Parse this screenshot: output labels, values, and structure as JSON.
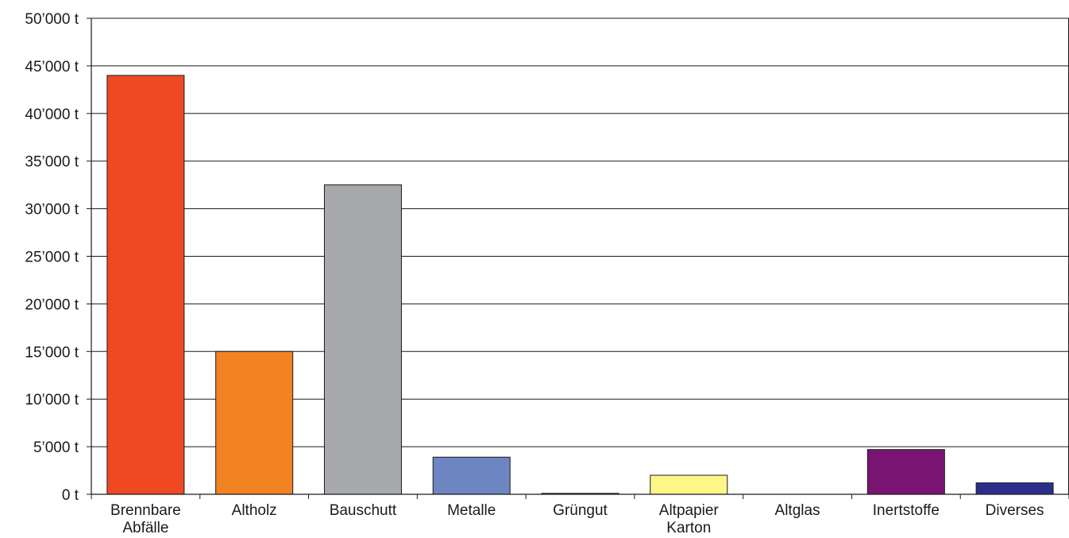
{
  "chart_data": {
    "type": "bar",
    "title": "",
    "xlabel": "",
    "ylabel": "",
    "categories": [
      [
        "Brennbare",
        "Abfälle"
      ],
      [
        "Altholz"
      ],
      [
        "Bauschutt"
      ],
      [
        "Metalle"
      ],
      [
        "Grüngut"
      ],
      [
        "Altpapier",
        "Karton"
      ],
      [
        "Altglas"
      ],
      [
        "Inertstoffe"
      ],
      [
        "Diverses"
      ]
    ],
    "values": [
      44000,
      15000,
      32500,
      3900,
      100,
      2000,
      0,
      4700,
      1200
    ],
    "colors": [
      "#ef4923",
      "#f38223",
      "#a7a9ad",
      "#6d86c2",
      "#8a8a2a",
      "#fff689",
      "#ffffff",
      "#7a1473",
      "#2b2f8c"
    ],
    "ylim": [
      0,
      50000
    ],
    "yticks": [
      0,
      5000,
      10000,
      15000,
      20000,
      25000,
      30000,
      35000,
      40000,
      45000,
      50000
    ],
    "ytick_labels": [
      "0 t",
      "5’000 t",
      "10’000 t",
      "15’000 t",
      "20’000 t",
      "25’000 t",
      "30’000 t",
      "35’000 t",
      "40’000 t",
      "45’000 t",
      "50’000 t"
    ],
    "grid": true,
    "legend": "none"
  }
}
